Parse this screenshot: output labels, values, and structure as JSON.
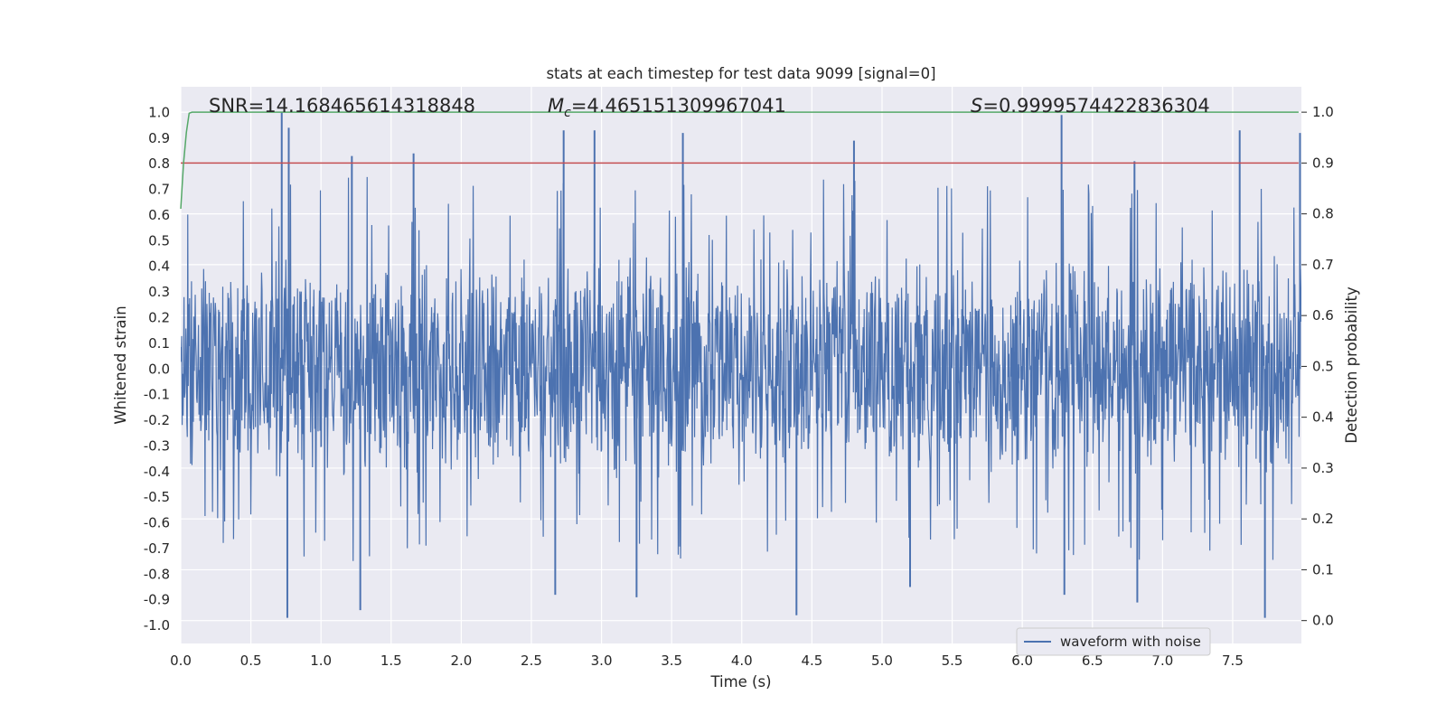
{
  "chart_data": {
    "type": "line",
    "title": "stats at each timestep for test data 9099 [signal=0]",
    "xlabel": "Time (s)",
    "ylabel": "Whitened strain",
    "y2label": "Detection probability",
    "xlim": [
      0.0,
      7.99
    ],
    "ylim": [
      -1.07,
      1.1
    ],
    "y2lim": [
      -0.045,
      1.05
    ],
    "xticks": [
      "0.0",
      "0.5",
      "1.0",
      "1.5",
      "2.0",
      "2.5",
      "3.0",
      "3.5",
      "4.0",
      "4.5",
      "5.0",
      "5.5",
      "6.0",
      "6.5",
      "7.0",
      "7.5"
    ],
    "yticks": [
      "1.0",
      "0.9",
      "0.8",
      "0.7",
      "0.6",
      "0.5",
      "0.4",
      "0.3",
      "0.2",
      "0.1",
      "0.0",
      "-0.1",
      "-0.2",
      "-0.3",
      "-0.4",
      "-0.5",
      "-0.6",
      "-0.7",
      "-0.8",
      "-0.9",
      "-1.0"
    ],
    "y2ticks": [
      "1.0",
      "0.9",
      "0.8",
      "0.7",
      "0.6",
      "0.5",
      "0.4",
      "0.3",
      "0.2",
      "0.1",
      "0.0"
    ],
    "grid": true,
    "legend_position": "lower-right",
    "annotations": {
      "snr": "SNR=14.168465614318848",
      "mc_symbol": "M",
      "mc_sub": "c",
      "mc_value": "=4.465151309967041",
      "s_symbol": "S",
      "s_value": "=0.9999574422836304"
    },
    "series": [
      {
        "name": "waveform with noise",
        "axis": "left",
        "color": "#4c72b0",
        "description_note": "dense noise roughly within ±0.45, spikes up to ~1.0 and down to ~-0.97",
        "peaks_upper": [
          [
            0.72,
            1.0
          ],
          [
            0.77,
            0.94
          ],
          [
            1.22,
            0.83
          ],
          [
            1.66,
            0.84
          ],
          [
            2.73,
            0.93
          ],
          [
            2.95,
            0.93
          ],
          [
            3.58,
            0.92
          ],
          [
            4.8,
            0.89
          ],
          [
            6.28,
            0.99
          ],
          [
            6.8,
            0.81
          ],
          [
            7.55,
            0.93
          ],
          [
            7.98,
            0.92
          ]
        ],
        "peaks_lower": [
          [
            0.76,
            -0.97
          ],
          [
            1.28,
            -0.94
          ],
          [
            2.67,
            -0.88
          ],
          [
            3.25,
            -0.89
          ],
          [
            4.39,
            -0.96
          ],
          [
            5.2,
            -0.85
          ],
          [
            6.3,
            -0.88
          ],
          [
            6.82,
            -0.91
          ],
          [
            7.73,
            -0.97
          ]
        ]
      },
      {
        "name": "",
        "axis": "right",
        "color": "#55a868",
        "x": [
          0.0,
          0.02,
          0.04,
          0.06,
          0.08,
          0.12,
          7.97
        ],
        "values": [
          0.81,
          0.9,
          0.96,
          0.998,
          1.0,
          1.0,
          1.0
        ]
      },
      {
        "name": "",
        "axis": "right",
        "color": "#c44e52",
        "x": [
          0.0,
          7.97
        ],
        "values": [
          0.9,
          0.9
        ]
      }
    ],
    "colors": {
      "background": "#eaeaf2",
      "grid": "#ffffff",
      "waveform": "#4c72b0",
      "probability": "#55a868",
      "threshold": "#c44e52"
    }
  }
}
